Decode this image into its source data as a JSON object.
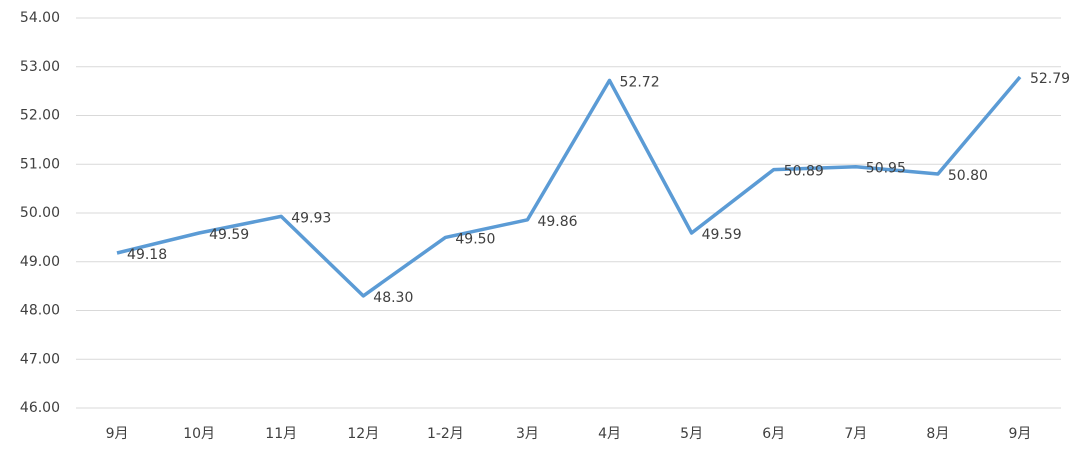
{
  "chart_data": {
    "type": "line",
    "categories": [
      "9月",
      "10月",
      "11月",
      "12月",
      "1-2月",
      "3月",
      "4月",
      "5月",
      "6月",
      "7月",
      "8月",
      "9月"
    ],
    "values": [
      49.18,
      49.59,
      49.93,
      48.3,
      49.5,
      49.86,
      52.72,
      49.59,
      50.89,
      50.95,
      50.8,
      52.79
    ],
    "value_labels": [
      "49.18",
      "49.59",
      "49.93",
      "48.30",
      "49.50",
      "49.86",
      "52.72",
      "49.59",
      "50.89",
      "50.95",
      "50.80",
      "52.79"
    ],
    "color": "#5b9bd5",
    "ylim": [
      46,
      54
    ],
    "yticks": [
      {
        "value": 46,
        "label": "46.00"
      },
      {
        "value": 47,
        "label": "47.00"
      },
      {
        "value": 48,
        "label": "48.00"
      },
      {
        "value": 49,
        "label": "49.00"
      },
      {
        "value": 50,
        "label": "50.00"
      },
      {
        "value": 51,
        "label": "51.00"
      },
      {
        "value": 52,
        "label": "52.00"
      },
      {
        "value": 53,
        "label": "53.00"
      },
      {
        "value": 54,
        "label": "54.00"
      }
    ],
    "grid": true
  }
}
